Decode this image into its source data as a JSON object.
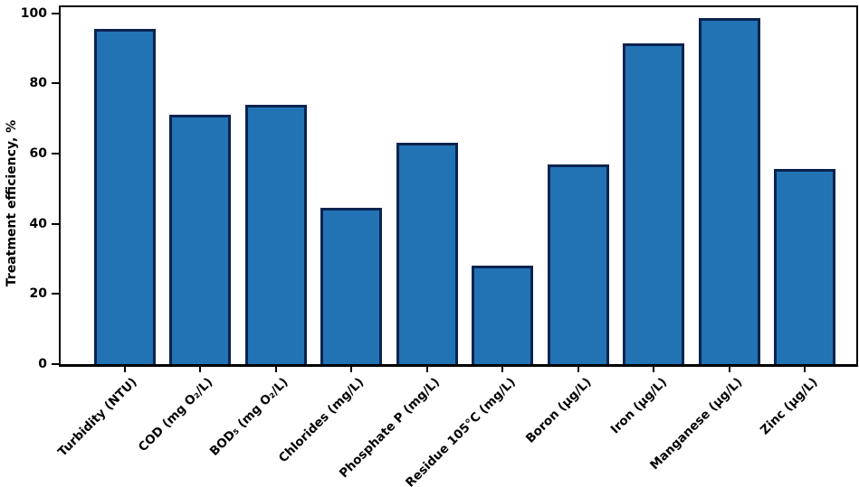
{
  "chart_data": {
    "type": "bar",
    "title": "",
    "xlabel": "",
    "ylabel": "Treatment efficiency, %",
    "categories": [
      "Turbidity (NTU)",
      "COD (mg O₂/L)",
      "BOD₅ (mg O₂/L)",
      "Chlorides (mg/L)",
      "Phosphate P (mg/L)",
      "Residue 105°C (mg/L)",
      "Boron (µg/L)",
      "Iron (µg/L)",
      "Manganese (µg/L)",
      "Zinc (µg/L)"
    ],
    "values": [
      95.5,
      71,
      74,
      44.5,
      63,
      28,
      57,
      91.5,
      98.5,
      55.5
    ],
    "yticks": [
      0,
      20,
      40,
      60,
      80,
      100
    ],
    "ylim": [
      0,
      102.5
    ],
    "grid": false,
    "legend": null,
    "bar_color": "#2173b4",
    "bar_edge_color": "#0b2350",
    "axis_color": "#000000"
  }
}
